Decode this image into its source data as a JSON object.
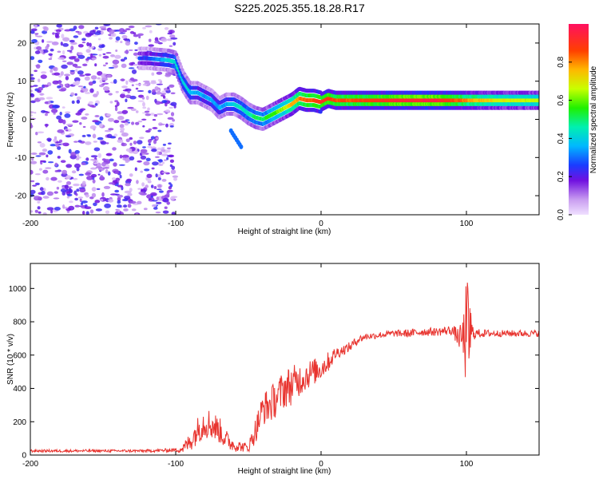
{
  "title": "S225.2025.355.18.28.R17",
  "chart_data": [
    {
      "type": "heatmap",
      "xlabel": "Height of straight line (km)",
      "ylabel": "Frequency (Hz)",
      "xlim": [
        -200,
        150
      ],
      "ylim": [
        -25,
        25
      ],
      "xticks": [
        -200,
        -100,
        0,
        100
      ],
      "yticks": [
        -20,
        -10,
        0,
        10,
        20
      ],
      "colorbar": {
        "label": "Normalized spectral amplitude",
        "range": [
          0,
          1
        ],
        "ticks": [
          0.0,
          0.2,
          0.4,
          0.6,
          0.8
        ]
      },
      "ridge": {
        "x": [
          -120,
          -105,
          -100,
          -95,
          -90,
          -85,
          -80,
          -75,
          -70,
          -65,
          -60,
          -55,
          -50,
          -45,
          -40,
          -35,
          -30,
          -25,
          -20,
          -15,
          -10,
          -5,
          0,
          5,
          10,
          20,
          40,
          60,
          80,
          100,
          120,
          150
        ],
        "y": [
          16,
          15.5,
          15,
          10,
          7,
          7,
          6,
          5,
          3,
          4,
          4,
          3,
          1.5,
          0.5,
          0,
          1,
          2,
          3,
          4,
          5.5,
          5,
          5,
          4.5,
          5.5,
          5,
          5,
          5,
          5,
          5,
          5,
          5,
          5
        ],
        "amplitude": [
          0.25,
          0.4,
          0.45,
          0.4,
          0.4,
          0.35,
          0.35,
          0.35,
          0.35,
          0.35,
          0.4,
          0.45,
          0.45,
          0.5,
          0.5,
          0.55,
          0.6,
          0.65,
          0.75,
          0.8,
          0.85,
          0.85,
          0.9,
          0.9,
          0.85,
          0.85,
          0.9,
          0.95,
          0.95,
          0.8,
          0.7,
          0.65
        ]
      }
    },
    {
      "type": "line",
      "xlabel": "Height of straight line (km)",
      "ylabel": "SNR (10 * v/v)",
      "xlim": [
        -200,
        150
      ],
      "ylim": [
        0,
        1150
      ],
      "xticks": [
        -200,
        -100,
        0,
        100
      ],
      "yticks": [
        0,
        200,
        400,
        600,
        800,
        1000
      ],
      "series": [
        {
          "color": "#e8342f",
          "x": [
            -200,
            -180,
            -160,
            -140,
            -120,
            -100,
            -95,
            -90,
            -85,
            -80,
            -75,
            -70,
            -65,
            -60,
            -55,
            -50,
            -45,
            -40,
            -35,
            -30,
            -25,
            -20,
            -15,
            -10,
            -5,
            0,
            5,
            10,
            15,
            20,
            25,
            30,
            40,
            50,
            60,
            70,
            80,
            90,
            95,
            98,
            100,
            102,
            104,
            106,
            110,
            120,
            130,
            140,
            150
          ],
          "y": [
            25,
            25,
            25,
            25,
            25,
            30,
            40,
            80,
            150,
            200,
            180,
            150,
            90,
            60,
            50,
            45,
            150,
            280,
            300,
            350,
            400,
            420,
            450,
            480,
            500,
            520,
            560,
            610,
            630,
            650,
            690,
            710,
            720,
            730,
            730,
            740,
            740,
            750,
            700,
            700,
            720,
            740,
            730,
            730,
            730,
            730,
            730,
            730,
            730
          ],
          "noise": [
            8,
            8,
            8,
            8,
            8,
            12,
            30,
            60,
            80,
            100,
            90,
            80,
            60,
            40,
            30,
            30,
            80,
            100,
            110,
            110,
            120,
            120,
            100,
            90,
            80,
            70,
            60,
            40,
            30,
            30,
            25,
            20,
            20,
            20,
            25,
            25,
            25,
            30,
            60,
            150,
            350,
            300,
            60,
            30,
            25,
            20,
            20,
            20,
            20
          ]
        }
      ]
    }
  ]
}
